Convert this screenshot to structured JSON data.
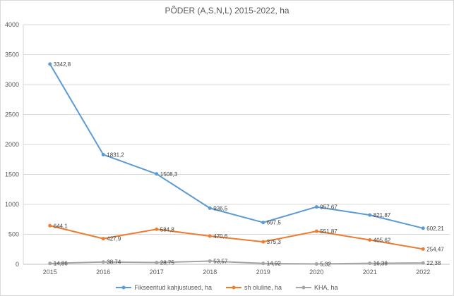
{
  "colors": {
    "series1": "#5B9BD5",
    "series2": "#ED7D31",
    "series3": "#A5A5A5",
    "grid": "#D9D9D9",
    "axis_line": "#BFBFBF",
    "axis_text": "#595959",
    "label_text": "#404040"
  },
  "chart_data": {
    "type": "line",
    "title": "PÕDER (A,S,N,L) 2015-2022, ha",
    "categories": [
      "2015",
      "2016",
      "2017",
      "2018",
      "2019",
      "2020",
      "2021",
      "2022"
    ],
    "series": [
      {
        "name": "Fikseeritud kahjustused, ha",
        "color": "#5B9BD5",
        "values": [
          3342.8,
          1831.2,
          1508.3,
          936.5,
          697.5,
          957.67,
          821.87,
          602.21
        ],
        "labels": [
          "3342,8",
          "1831,2",
          "1508,3",
          "936,5",
          "697,5",
          "957,67",
          "821,87",
          "602,21"
        ]
      },
      {
        "name": "sh oluline, ha",
        "color": "#ED7D31",
        "values": [
          644.1,
          427.9,
          584.8,
          470.6,
          375.3,
          551.87,
          405.62,
          254.47
        ],
        "labels": [
          "644,1",
          "427,9",
          "584,8",
          "470,6",
          "375,3",
          "551,87",
          "405,62",
          "254,47"
        ]
      },
      {
        "name": "KHA, ha",
        "color": "#A5A5A5",
        "values": [
          14.86,
          38.74,
          28.75,
          53.57,
          14.92,
          5.32,
          16.38,
          22.38
        ],
        "labels": [
          "14,86",
          "38,74",
          "28,75",
          "53,57",
          "14,92",
          "5,32",
          "16,38",
          "22,38"
        ]
      }
    ],
    "ylim": [
      0,
      4000
    ],
    "ytick_step": 500,
    "yticks": [
      "0",
      "500",
      "1000",
      "1500",
      "2000",
      "2500",
      "3000",
      "3500",
      "4000"
    ],
    "grid": true,
    "legend_position": "bottom"
  }
}
